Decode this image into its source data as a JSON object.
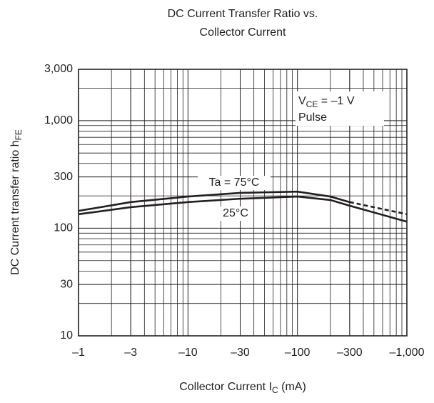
{
  "chart_data": {
    "type": "line",
    "title": [
      "DC Current Transfer Ratio vs.",
      "Collector Current"
    ],
    "x_label": {
      "text": "Collector Current  I",
      "sub": "C",
      "rest": "  (mA)"
    },
    "y_label": {
      "text": "DC Current transfer ratio  h",
      "sub": "FE"
    },
    "x_scale": "log",
    "y_scale": "log",
    "grid": true,
    "xlim": [
      -1,
      -1000
    ],
    "xticks": [
      {
        "value": -1,
        "label": "–1"
      },
      {
        "value": -3,
        "label": "–3"
      },
      {
        "value": -10,
        "label": "–10"
      },
      {
        "value": -30,
        "label": "–30"
      },
      {
        "value": -100,
        "label": "–100"
      },
      {
        "value": -300,
        "label": "–300"
      },
      {
        "value": -1000,
        "label": "–1,000"
      }
    ],
    "ylim": [
      10,
      3000
    ],
    "yticks": [
      10,
      30,
      100,
      300,
      {
        "value": 1000,
        "label": "1,000"
      },
      {
        "value": 3000,
        "label": "3,000"
      }
    ],
    "x": [
      -1,
      -3,
      -10,
      -30,
      -100,
      -200,
      -300,
      -1000
    ],
    "series": [
      {
        "name": "Ta = 75°C",
        "color": "#231f20",
        "values": [
          145,
          175,
          197,
          213,
          219,
          197,
          175,
          135
        ],
        "dashed_from_x": -300
      },
      {
        "name": "25°C",
        "color": "#231f20",
        "values": [
          135,
          157,
          175,
          188,
          197,
          183,
          162,
          115
        ]
      }
    ],
    "annotations": [
      {
        "text": "V",
        "sub": "CE",
        "rest": " = –1 V"
      },
      {
        "text": "Pulse"
      }
    ]
  }
}
